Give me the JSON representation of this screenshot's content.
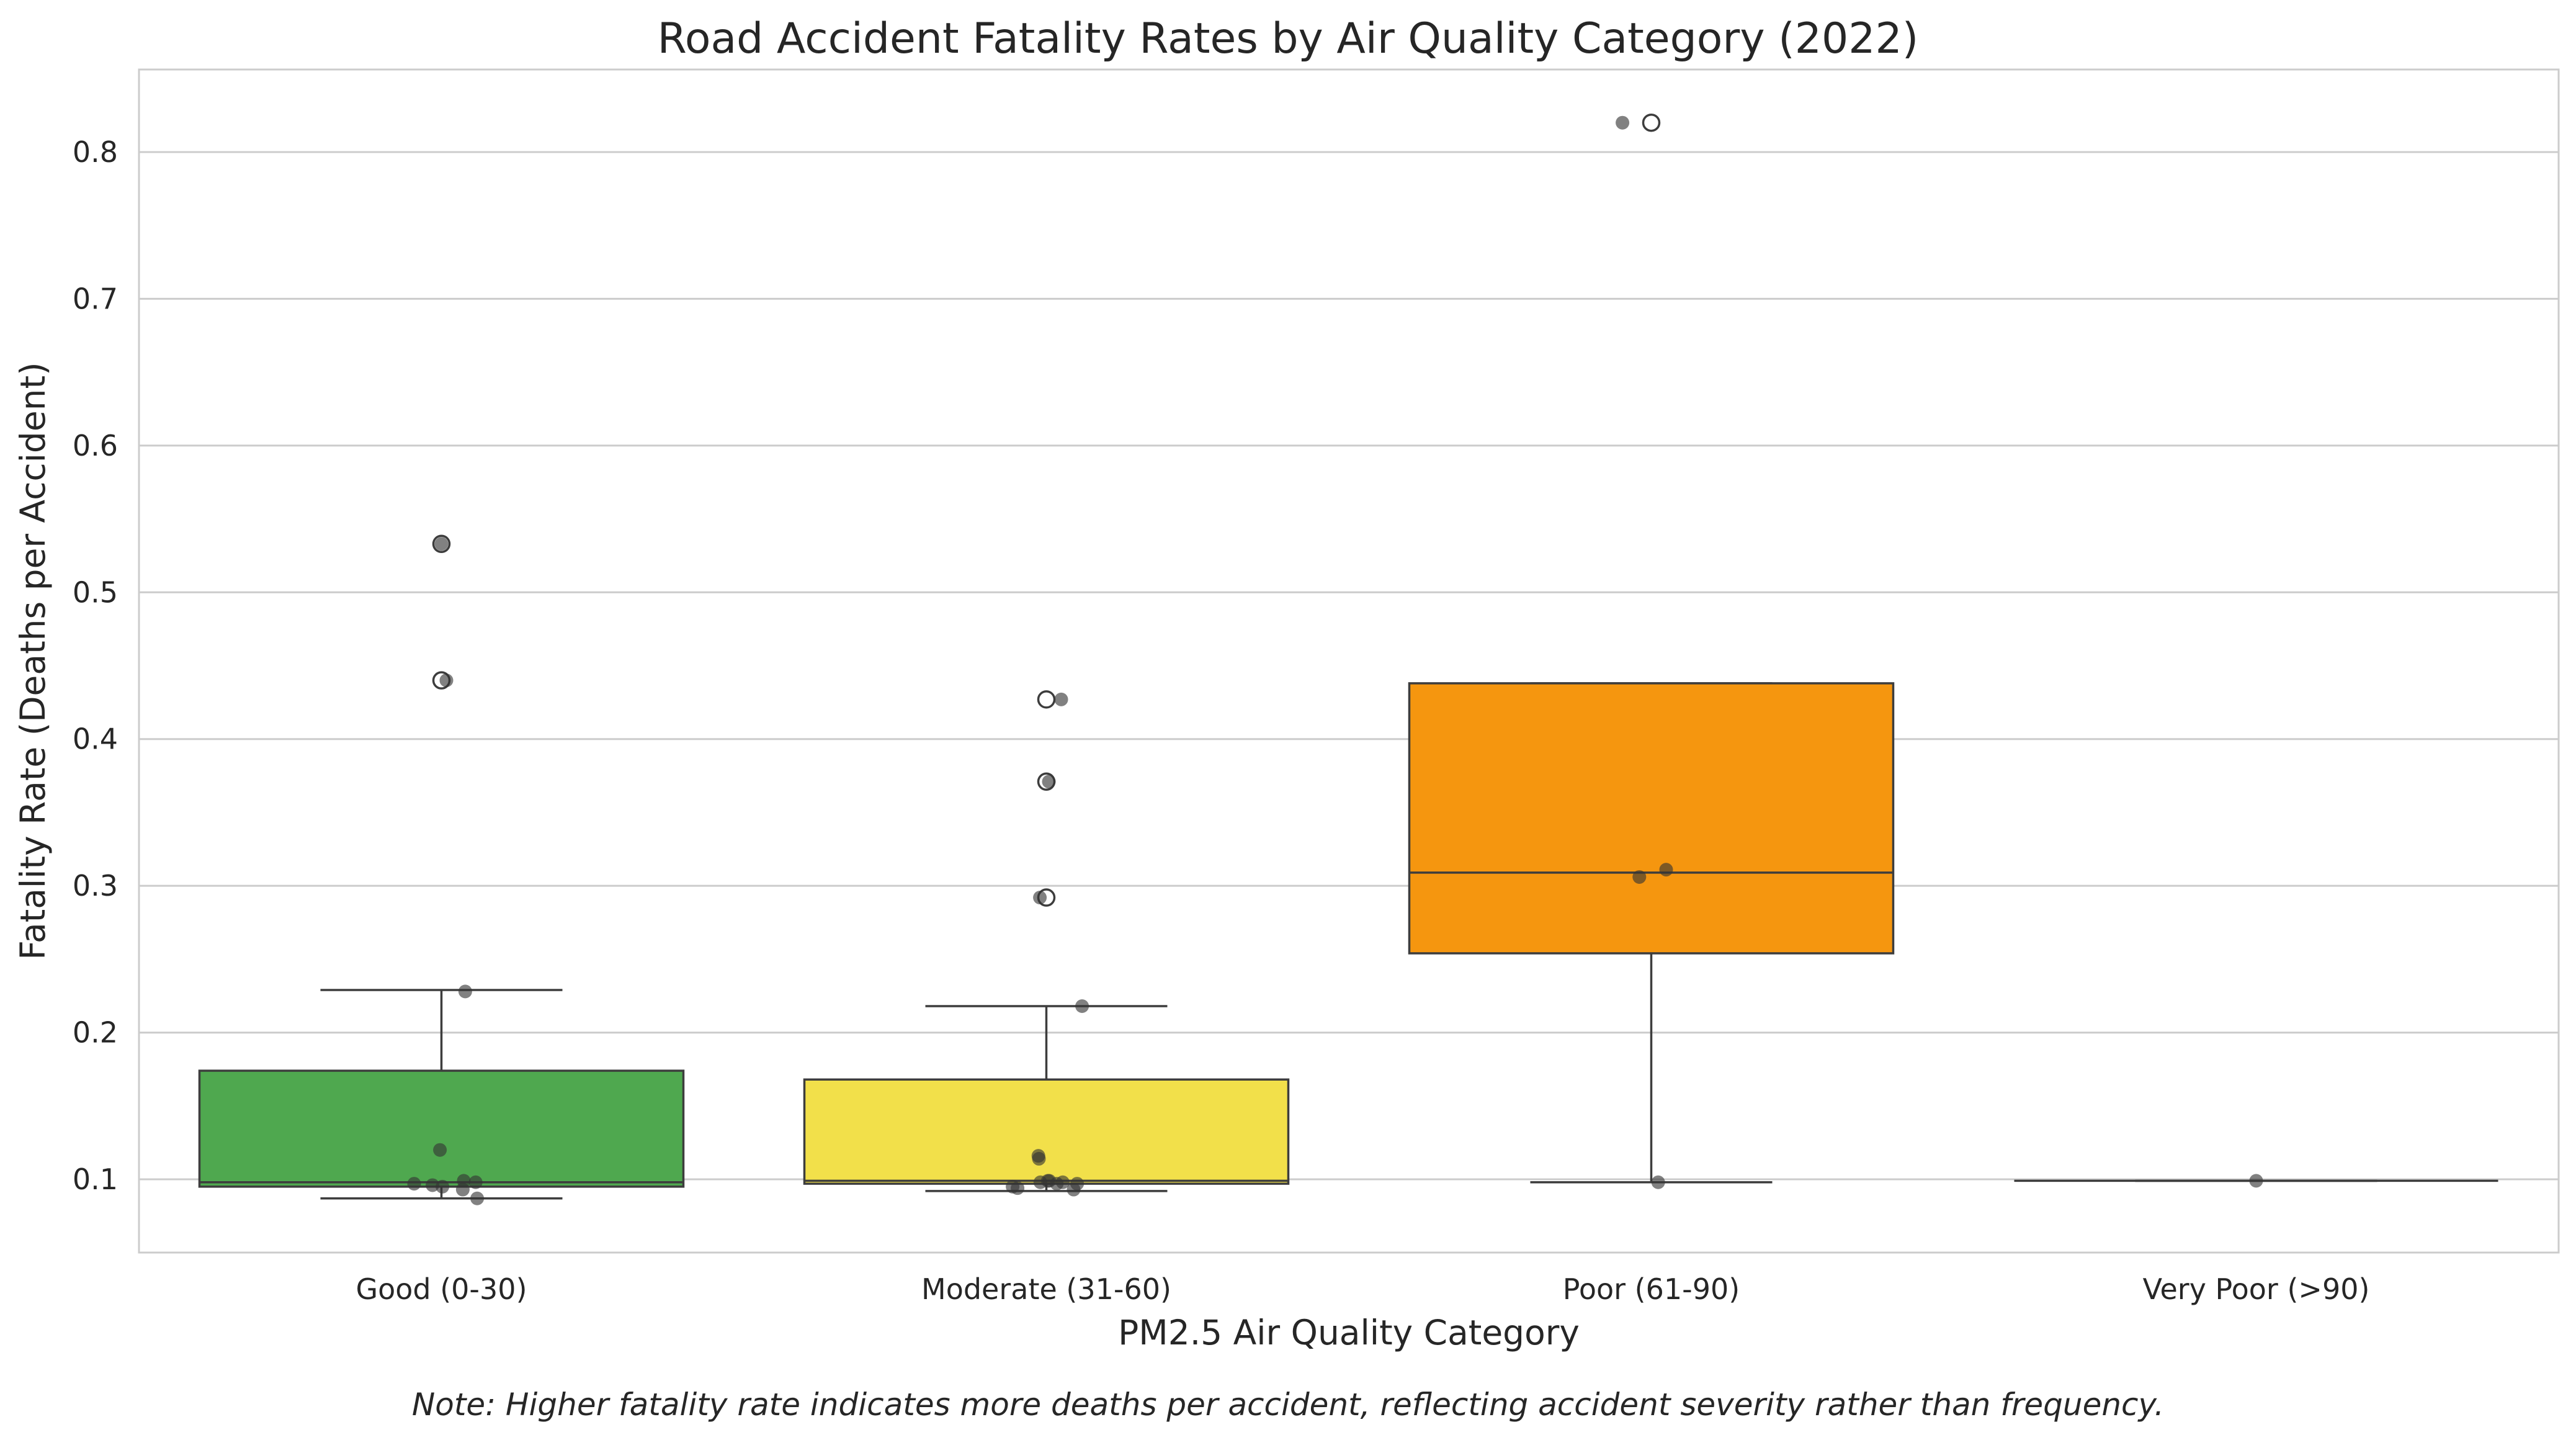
{
  "chart_data": {
    "type": "box",
    "title": "Road Accident Fatality Rates by Air Quality Category (2022)",
    "xlabel": "PM2.5 Air Quality Category",
    "ylabel": "Fatality Rate (Deaths per Accident)",
    "note": "Note: Higher fatality rate indicates more deaths per accident, reflecting accident severity rather than frequency.",
    "ylim": [
      0.05,
      0.85
    ],
    "yticks": [
      0.1,
      0.2,
      0.3,
      0.4,
      0.5,
      0.6,
      0.7,
      0.8
    ],
    "grid": "horizontal",
    "categories": [
      "Good (0-30)",
      "Moderate (31-60)",
      "Poor (61-90)",
      "Very Poor (>90)"
    ],
    "boxes": [
      {
        "category": "Good (0-30)",
        "color": "#4fa84f",
        "q1": 0.095,
        "median": 0.098,
        "q3": 0.174,
        "whisker_low": 0.087,
        "whisker_high": 0.229,
        "outliers": [
          0.533,
          0.44
        ]
      },
      {
        "category": "Moderate (31-60)",
        "color": "#f2e04a",
        "q1": 0.097,
        "median": 0.099,
        "q3": 0.168,
        "whisker_low": 0.092,
        "whisker_high": 0.218,
        "outliers": [
          0.427,
          0.371,
          0.292
        ]
      },
      {
        "category": "Poor (61-90)",
        "color": "#f5960f",
        "q1": 0.254,
        "median": 0.309,
        "q3": 0.438,
        "whisker_low": 0.098,
        "whisker_high": 0.438,
        "outliers": [
          0.82
        ]
      },
      {
        "category": "Very Poor (>90)",
        "color": "#d9d9d9",
        "q1": 0.099,
        "median": 0.099,
        "q3": 0.099,
        "whisker_low": 0.099,
        "whisker_high": 0.099,
        "outliers": []
      }
    ],
    "points": [
      {
        "category": "Good (0-30)",
        "values": [
          0.533,
          0.44,
          0.228,
          0.12,
          0.097,
          0.096,
          0.095,
          0.099,
          0.093,
          0.098,
          0.087
        ]
      },
      {
        "category": "Moderate (31-60)",
        "values": [
          0.427,
          0.371,
          0.292,
          0.218,
          0.116,
          0.114,
          0.095,
          0.094,
          0.098,
          0.099,
          0.099,
          0.097,
          0.098,
          0.093,
          0.097
        ]
      },
      {
        "category": "Poor (61-90)",
        "values": [
          0.82,
          0.306,
          0.311,
          0.098
        ]
      },
      {
        "category": "Very Poor (>90)",
        "values": [
          0.099
        ]
      }
    ]
  }
}
